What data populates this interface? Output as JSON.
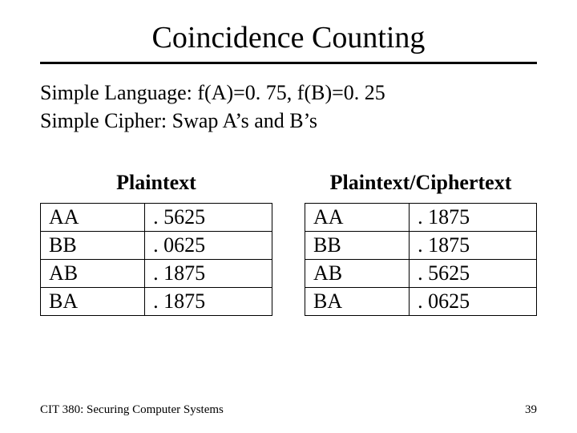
{
  "title": "Coincidence Counting",
  "description": {
    "line1": "Simple Language: f(A)=0. 75, f(B)=0. 25",
    "line2": "Simple Cipher: Swap A’s and B’s"
  },
  "tables": {
    "left": {
      "heading": "Plaintext",
      "rows": [
        {
          "pair": "AA",
          "value": ". 5625"
        },
        {
          "pair": "BB",
          "value": ". 0625"
        },
        {
          "pair": "AB",
          "value": ". 1875"
        },
        {
          "pair": "BA",
          "value": ". 1875"
        }
      ]
    },
    "right": {
      "heading": "Plaintext/Ciphertext",
      "rows": [
        {
          "pair": "AA",
          "value": ". 1875"
        },
        {
          "pair": "BB",
          "value": ". 1875"
        },
        {
          "pair": "AB",
          "value": ". 5625"
        },
        {
          "pair": "BA",
          "value": ". 0625"
        }
      ]
    }
  },
  "footer": {
    "course": "CIT 380: Securing Computer Systems",
    "page": "39"
  },
  "style": {
    "background_color": "#ffffff",
    "text_color": "#000000",
    "rule_color": "#000000",
    "title_fontsize": 38,
    "body_fontsize": 26,
    "footer_fontsize": 15,
    "table_border_color": "#000000"
  }
}
